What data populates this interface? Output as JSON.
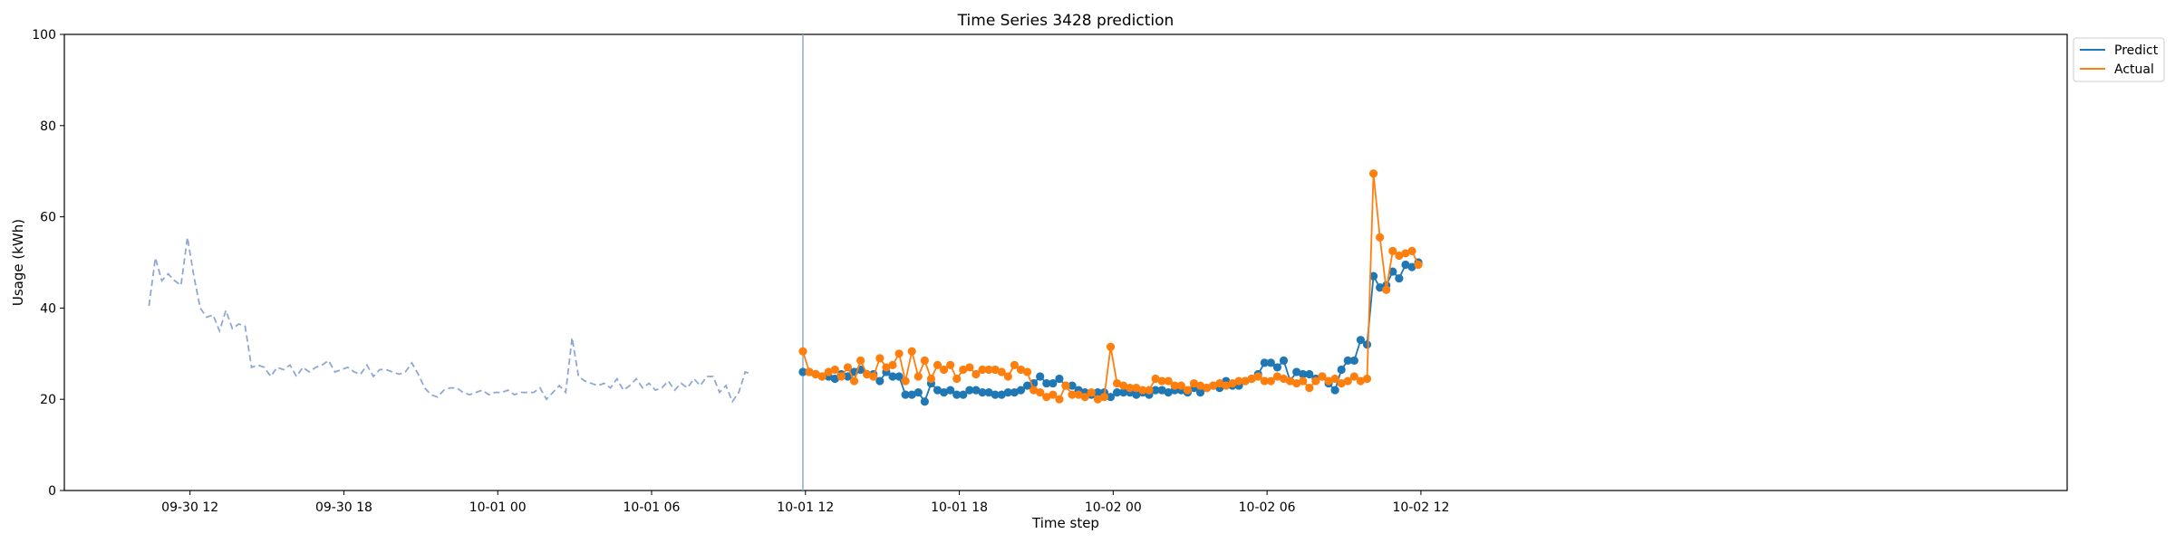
{
  "chart_data": {
    "type": "line",
    "title": "Time Series 3428 prediction",
    "xlabel": "Time step",
    "ylabel": "Usage (kWh)",
    "ylim": [
      0,
      100
    ],
    "yticks": [
      0,
      20,
      40,
      60,
      80,
      100
    ],
    "x_unit": "hours since 09-30 00:00",
    "xlim": [
      7.1,
      85.2
    ],
    "xticks": [
      {
        "x": 12,
        "label": "09-30 12"
      },
      {
        "x": 18,
        "label": "09-30 18"
      },
      {
        "x": 24,
        "label": "10-01 00"
      },
      {
        "x": 30,
        "label": "10-01 06"
      },
      {
        "x": 36,
        "label": "10-01 12"
      },
      {
        "x": 42,
        "label": "10-01 18"
      },
      {
        "x": 48,
        "label": "10-02 00"
      },
      {
        "x": 54,
        "label": "10-02 06"
      },
      {
        "x": 60,
        "label": "10-02 12"
      }
    ],
    "grid": false,
    "legend_position": "top-right, outside plot",
    "forecast_start_x": 35.9,
    "history": {
      "name": "History",
      "color": "#8fa8d3",
      "x_start": 10.4,
      "x_step": 0.25,
      "values": [
        40.5,
        51,
        46,
        47.5,
        46,
        45,
        55.5,
        47,
        40,
        38,
        38.5,
        35,
        39.5,
        35.5,
        36.5,
        36,
        27,
        27.5,
        27,
        25,
        27,
        26.5,
        27.5,
        25,
        27,
        26,
        27,
        27.5,
        28.5,
        26,
        26.5,
        27,
        26,
        25.5,
        27.5,
        25,
        26.5,
        26.5,
        26,
        25.5,
        26,
        28,
        25.5,
        22.5,
        21,
        20.5,
        22,
        22.5,
        22.5,
        21.5,
        21,
        21.5,
        22,
        21,
        21.5,
        21.5,
        22,
        21,
        21.5,
        21.5,
        21.5,
        22.5,
        20,
        21.5,
        23,
        21.5,
        33.5,
        25,
        24,
        23.5,
        23,
        23.5,
        22.5,
        24.5,
        22,
        23,
        24.5,
        22.5,
        23.5,
        22,
        22.5,
        24,
        22,
        23.5,
        22.5,
        24.5,
        23,
        25,
        25,
        21.5,
        23,
        19.5,
        21.5,
        26,
        25.5
      ]
    },
    "series": [
      {
        "name": "Predict",
        "color": "#1f77b4",
        "x_start": 35.9,
        "x_step": 0.25,
        "values": [
          26,
          26,
          25.5,
          25,
          25,
          24.5,
          25.5,
          25,
          26,
          26.5,
          25.5,
          25.5,
          24,
          26,
          25,
          25,
          21,
          21,
          21.5,
          19.5,
          23.5,
          22,
          21.5,
          22,
          21,
          21,
          22,
          22,
          21.5,
          21.5,
          21,
          21,
          21.5,
          21.5,
          22,
          23,
          23.5,
          25,
          23.5,
          23.5,
          24.5,
          23,
          23,
          22,
          21.5,
          21,
          21.5,
          21.5,
          20.5,
          21.5,
          21.5,
          21.5,
          21,
          21.5,
          21,
          22,
          22,
          21.5,
          22,
          22,
          21.5,
          22.5,
          21.5,
          22.5,
          23,
          22.5,
          24,
          23,
          23,
          24,
          24.5,
          25.5,
          28,
          28,
          27,
          28.5,
          24,
          26,
          25.5,
          25.5,
          24.5,
          25,
          23.5,
          22,
          26.5,
          28.5,
          28.5,
          33,
          32,
          47,
          44.5,
          45,
          48,
          46.5,
          49.5,
          49,
          50
        ]
      },
      {
        "name": "Actual",
        "color": "#ff7f0e",
        "x_start": 35.9,
        "x_step": 0.25,
        "values": [
          30.5,
          26,
          25.5,
          25,
          26,
          26.5,
          25,
          27,
          24,
          28.5,
          25.5,
          25,
          29,
          27,
          27.5,
          30,
          24,
          30.5,
          25,
          28.5,
          24.5,
          27.5,
          26.5,
          27.5,
          24.5,
          26.5,
          27,
          25.5,
          26.5,
          26.5,
          26.5,
          26,
          25,
          27.5,
          26.5,
          26,
          22,
          21.5,
          20.5,
          21,
          20,
          23,
          21,
          21,
          20.5,
          21.5,
          20,
          20.5,
          31.5,
          23.5,
          23,
          22.5,
          22.5,
          22,
          22,
          24.5,
          24,
          24,
          23,
          23,
          22,
          23.5,
          23,
          22.5,
          23,
          23.5,
          23,
          23.5,
          24,
          24,
          24.5,
          25,
          24,
          24,
          25,
          24.5,
          24,
          23.5,
          24,
          22.5,
          24,
          25,
          24,
          24.5,
          23.5,
          24,
          25,
          24,
          24.5,
          69.5,
          55.5,
          44,
          52.5,
          51.5,
          52,
          52.5,
          49.5
        ]
      }
    ]
  }
}
